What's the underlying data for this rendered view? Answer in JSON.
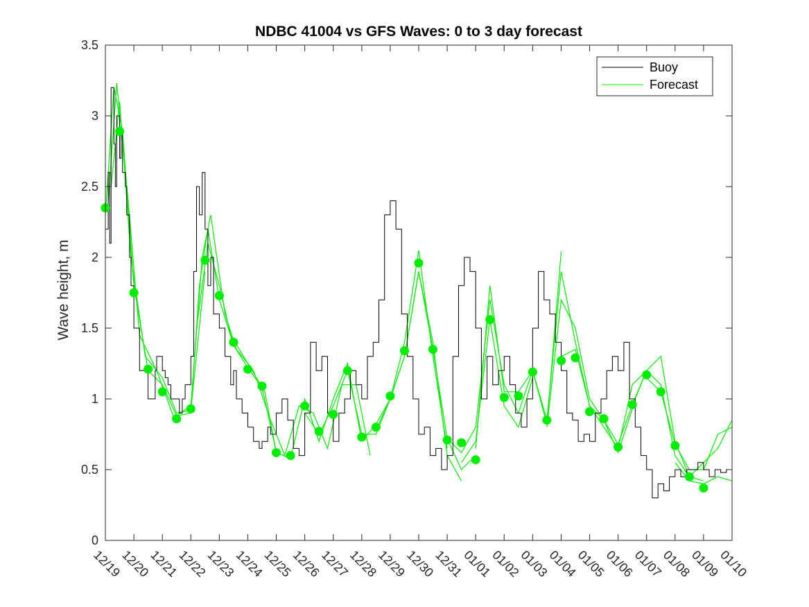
{
  "chart_data": {
    "type": "line",
    "title": "NDBC 41004 vs GFS Waves: 0 to 3 day forecast",
    "xlabel": "",
    "ylabel": "Wave height, m",
    "ylim": [
      0,
      3.5
    ],
    "yticks": [
      0,
      0.5,
      1,
      1.5,
      2,
      2.5,
      3,
      3.5
    ],
    "ytick_labels": [
      "0",
      "0.5",
      "1",
      "1.5",
      "2",
      "2.5",
      "3",
      "3.5"
    ],
    "xlim_days": [
      0,
      22
    ],
    "xtick_labels": [
      "12/19",
      "12/20",
      "12/21",
      "12/22",
      "12/23",
      "12/24",
      "12/25",
      "12/26",
      "12/27",
      "12/28",
      "12/29",
      "12/30",
      "12/31",
      "01/01",
      "01/02",
      "01/03",
      "01/04",
      "01/05",
      "01/06",
      "01/07",
      "01/08",
      "01/09",
      "01/10"
    ],
    "legend": {
      "position": "top-right",
      "entries": [
        "Buoy",
        "Forecast"
      ]
    },
    "colors": {
      "buoy": "#000000",
      "forecast": "#00ee00",
      "axis": "#262626"
    },
    "buoy": {
      "name": "Buoy",
      "x": [
        0,
        0.1,
        0.15,
        0.2,
        0.3,
        0.35,
        0.4,
        0.5,
        0.55,
        0.6,
        0.7,
        0.75,
        0.85,
        0.9,
        1.0,
        1.2,
        1.5,
        1.75,
        1.8,
        2.0,
        2.1,
        2.2,
        2.3,
        2.5,
        2.6,
        2.7,
        2.8,
        3.0,
        3.1,
        3.2,
        3.3,
        3.4,
        3.5,
        3.6,
        3.7,
        3.8,
        4.0,
        4.2,
        4.4,
        4.5,
        4.6,
        4.7,
        4.8,
        5.0,
        5.2,
        5.4,
        5.5,
        5.7,
        5.8,
        6.0,
        6.2,
        6.4,
        6.6,
        6.8,
        7.0,
        7.2,
        7.4,
        7.6,
        7.8,
        8.0,
        8.2,
        8.4,
        8.6,
        8.8,
        9.0,
        9.2,
        9.4,
        9.6,
        9.8,
        10.0,
        10.2,
        10.4,
        10.6,
        10.8,
        11.0,
        11.2,
        11.4,
        11.6,
        11.8,
        12.0,
        12.2,
        12.4,
        12.6,
        12.8,
        13.0,
        13.2,
        13.4,
        13.6,
        13.8,
        14.0,
        14.2,
        14.4,
        14.6,
        14.8,
        15.0,
        15.2,
        15.4,
        15.6,
        15.8,
        16.0,
        16.2,
        16.4,
        16.6,
        16.8,
        17.0,
        17.2,
        17.4,
        17.6,
        17.8,
        18.0,
        18.2,
        18.4,
        18.6,
        18.8,
        19.0,
        19.2,
        19.4,
        19.6,
        19.8,
        20.0,
        20.2,
        20.4,
        20.6,
        20.8,
        21.0,
        21.2,
        21.4,
        21.6,
        21.8,
        22.0
      ],
      "y": [
        2.2,
        2.6,
        2.1,
        3.2,
        2.8,
        2.5,
        3.0,
        2.7,
        2.9,
        2.6,
        2.5,
        2.3,
        2.0,
        1.8,
        1.5,
        1.2,
        1.0,
        1.2,
        1.3,
        1.2,
        1.15,
        1.1,
        1.0,
        1.0,
        0.9,
        1.0,
        1.1,
        1.3,
        1.9,
        2.5,
        2.3,
        2.6,
        2.2,
        1.8,
        2.0,
        1.6,
        1.5,
        1.3,
        1.1,
        1.2,
        1.0,
        1.0,
        0.9,
        0.8,
        0.7,
        0.65,
        0.7,
        0.8,
        0.75,
        0.9,
        1.0,
        0.85,
        0.65,
        0.6,
        0.9,
        1.4,
        1.2,
        1.3,
        0.9,
        0.7,
        0.9,
        1.0,
        1.2,
        1.1,
        1.0,
        1.3,
        1.4,
        1.7,
        2.3,
        2.4,
        2.2,
        1.6,
        1.3,
        1.0,
        0.75,
        0.8,
        0.6,
        0.65,
        0.5,
        0.6,
        1.3,
        1.8,
        2.0,
        1.9,
        1.5,
        1.0,
        1.3,
        1.1,
        1.2,
        1.3,
        1.1,
        0.9,
        0.8,
        1.0,
        1.5,
        1.9,
        1.7,
        1.6,
        1.4,
        1.2,
        0.9,
        0.85,
        0.7,
        0.75,
        0.7,
        0.9,
        1.0,
        1.2,
        1.3,
        1.2,
        1.4,
        1.0,
        0.8,
        0.6,
        0.5,
        0.3,
        0.4,
        0.35,
        0.45,
        0.5,
        0.45,
        0.5,
        0.5,
        0.55,
        0.5,
        0.45,
        0.5,
        0.48,
        0.5,
        0.5
      ]
    },
    "forecast_markers": {
      "x": [
        0.0,
        0.5,
        1.0,
        1.5,
        2.0,
        2.5,
        3.0,
        3.5,
        4.0,
        4.5,
        5.0,
        5.5,
        6.0,
        6.5,
        7.0,
        7.5,
        8.0,
        8.5,
        9.0,
        9.5,
        10.0,
        10.5,
        11.0,
        11.5,
        12.0,
        12.5,
        13.0,
        13.5,
        14.0,
        14.5,
        15.0,
        15.5,
        16.0,
        16.5,
        17.0,
        17.5,
        18.0,
        18.5,
        19.0,
        19.5,
        20.0,
        20.5,
        21.0
      ],
      "y": [
        2.35,
        2.89,
        1.75,
        1.21,
        1.05,
        0.86,
        0.93,
        1.98,
        1.73,
        1.4,
        1.21,
        1.09,
        0.62,
        0.6,
        0.95,
        0.77,
        0.89,
        1.2,
        0.73,
        0.8,
        1.02,
        1.34,
        1.96,
        1.35,
        0.71,
        0.69,
        0.57,
        1.56,
        1.01,
        1.02,
        1.19,
        0.85,
        1.27,
        1.29,
        0.91,
        0.86,
        0.66,
        0.96,
        1.17,
        1.05,
        0.67,
        0.45,
        0.37
      ]
    },
    "forecast_runs": [
      {
        "name": "run-1",
        "x": [
          0,
          0.3,
          0.6,
          1.0,
          1.5,
          2.0,
          2.5,
          3.0
        ],
        "y": [
          2.3,
          3.2,
          2.9,
          1.8,
          1.2,
          1.1,
          0.88,
          0.9
        ]
      },
      {
        "name": "run-2",
        "x": [
          0.2,
          0.5,
          0.9,
          1.4,
          2.0,
          2.5,
          3.0,
          3.5
        ],
        "y": [
          2.5,
          3.1,
          2.0,
          1.3,
          1.15,
          0.9,
          0.92,
          1.9
        ]
      },
      {
        "name": "run-3",
        "x": [
          0.1,
          0.4,
          0.8,
          1.2,
          1.8,
          2.4,
          3.0
        ],
        "y": [
          2.4,
          3.23,
          2.4,
          1.45,
          1.2,
          0.87,
          0.95
        ]
      },
      {
        "name": "run-4",
        "x": [
          3.0,
          3.3,
          3.6,
          4.0,
          4.5,
          5.0,
          5.5,
          6.0
        ],
        "y": [
          0.9,
          1.8,
          2.2,
          1.7,
          1.38,
          1.22,
          1.08,
          0.63
        ]
      },
      {
        "name": "run-5",
        "x": [
          3.0,
          3.4,
          3.7,
          4.2,
          4.6,
          5.2,
          5.8,
          6.3
        ],
        "y": [
          0.95,
          2.0,
          2.3,
          1.6,
          1.35,
          1.2,
          0.85,
          0.6
        ]
      },
      {
        "name": "run-6",
        "x": [
          3.2,
          3.6,
          4.0,
          4.4,
          5.0,
          5.6,
          6.0,
          6.5
        ],
        "y": [
          1.5,
          2.1,
          1.8,
          1.45,
          1.25,
          1.05,
          0.62,
          0.58
        ]
      },
      {
        "name": "run-7",
        "x": [
          6.0,
          6.5,
          7.0,
          7.5,
          8.0,
          8.5,
          9.0
        ],
        "y": [
          0.62,
          0.58,
          1.0,
          0.7,
          1.0,
          1.25,
          0.7
        ]
      },
      {
        "name": "run-8",
        "x": [
          6.3,
          6.8,
          7.3,
          7.8,
          8.3,
          8.8,
          9.3
        ],
        "y": [
          0.6,
          0.95,
          0.9,
          0.65,
          1.1,
          1.1,
          0.6
        ]
      },
      {
        "name": "run-9",
        "x": [
          7.0,
          7.5,
          8.0,
          8.5,
          9.0,
          9.5,
          10.0
        ],
        "y": [
          0.9,
          0.75,
          0.95,
          1.2,
          0.75,
          0.75,
          1.0
        ]
      },
      {
        "name": "run-10",
        "x": [
          9.0,
          9.5,
          10.0,
          10.5,
          11.0,
          11.5,
          12.0
        ],
        "y": [
          0.7,
          0.82,
          1.0,
          1.4,
          2.05,
          1.3,
          0.65
        ]
      },
      {
        "name": "run-11",
        "x": [
          9.5,
          10.0,
          10.5,
          11.0,
          11.5,
          12.0,
          12.5
        ],
        "y": [
          0.78,
          1.0,
          1.3,
          1.9,
          1.4,
          0.6,
          0.42
        ]
      },
      {
        "name": "run-12",
        "x": [
          10.0,
          10.5,
          11.0,
          11.5,
          12.0,
          12.5,
          13.0
        ],
        "y": [
          1.0,
          1.3,
          1.9,
          1.35,
          0.72,
          0.5,
          0.6
        ]
      },
      {
        "name": "run-13",
        "x": [
          12.0,
          12.5,
          13.0,
          13.5,
          14.0,
          14.5,
          15.0
        ],
        "y": [
          0.72,
          0.62,
          0.8,
          1.7,
          1.1,
          0.9,
          1.2
        ]
      },
      {
        "name": "run-14",
        "x": [
          12.5,
          13.0,
          13.5,
          14.0,
          14.5,
          15.0
        ],
        "y": [
          0.55,
          0.7,
          1.56,
          0.95,
          0.8,
          1.15
        ]
      },
      {
        "name": "run-15",
        "x": [
          13.0,
          13.5,
          14.0,
          14.5,
          15.0,
          15.5,
          16.0
        ],
        "y": [
          0.65,
          1.8,
          1.05,
          1.05,
          1.2,
          0.82,
          2.04
        ]
      },
      {
        "name": "run-16",
        "x": [
          15.0,
          15.5,
          16.0,
          16.5,
          17.0,
          17.5,
          18.0
        ],
        "y": [
          1.2,
          0.85,
          1.9,
          1.4,
          0.95,
          0.8,
          0.65
        ]
      },
      {
        "name": "run-17",
        "x": [
          15.5,
          16.0,
          16.5,
          17.0,
          17.5,
          18.0,
          18.5
        ],
        "y": [
          0.8,
          1.7,
          1.5,
          1.0,
          0.85,
          0.62,
          0.93
        ]
      },
      {
        "name": "run-18",
        "x": [
          16.0,
          16.5,
          17.0,
          17.5,
          18.0,
          18.5,
          19.0
        ],
        "y": [
          1.3,
          1.35,
          0.95,
          0.85,
          0.68,
          0.96,
          1.2
        ]
      },
      {
        "name": "run-19",
        "x": [
          18.0,
          18.5,
          19.0,
          19.5,
          20.0,
          20.5,
          21.0
        ],
        "y": [
          0.65,
          1.1,
          1.2,
          1.1,
          0.6,
          0.45,
          0.42
        ]
      },
      {
        "name": "run-20",
        "x": [
          18.5,
          19.0,
          19.5,
          20.0,
          20.5,
          21.0,
          21.5,
          22.0
        ],
        "y": [
          0.95,
          1.2,
          1.3,
          0.7,
          0.45,
          0.55,
          0.65,
          0.85
        ]
      },
      {
        "name": "run-21",
        "x": [
          19.0,
          19.5,
          20.0,
          20.5,
          21.0,
          21.5,
          22.0
        ],
        "y": [
          1.15,
          1.05,
          0.68,
          0.5,
          0.5,
          0.75,
          0.8
        ]
      },
      {
        "name": "run-22",
        "x": [
          20.0,
          20.5,
          21.0,
          21.5,
          22.0
        ],
        "y": [
          0.55,
          0.42,
          0.4,
          0.45,
          0.42
        ]
      }
    ]
  }
}
